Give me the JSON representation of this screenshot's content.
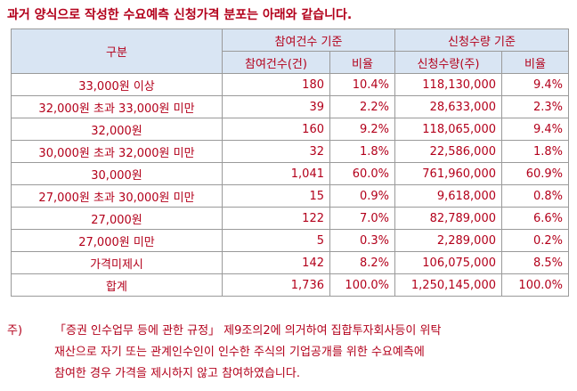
{
  "heading": "과거 양식으로 작성한 수요예측 신청가격 분포는 아래와 같습니다.",
  "table": {
    "header_category": "구분",
    "header_group_count": "참여건수 기준",
    "header_group_qty": "신청수량 기준",
    "sub_count": "참여건수(건)",
    "sub_count_ratio": "비율",
    "sub_qty": "신청수량(주)",
    "sub_qty_ratio": "비율",
    "rows": [
      {
        "label": "33,000원 이상",
        "count": "180",
        "count_ratio": "10.4%",
        "qty": "118,130,000",
        "qty_ratio": "9.4%"
      },
      {
        "label": "32,000원 초과 33,000원 미만",
        "count": "39",
        "count_ratio": "2.2%",
        "qty": "28,633,000",
        "qty_ratio": "2.3%"
      },
      {
        "label": "32,000원",
        "count": "160",
        "count_ratio": "9.2%",
        "qty": "118,065,000",
        "qty_ratio": "9.4%"
      },
      {
        "label": "30,000원 초과 32,000원 미만",
        "count": "32",
        "count_ratio": "1.8%",
        "qty": "22,586,000",
        "qty_ratio": "1.8%"
      },
      {
        "label": "30,000원",
        "count": "1,041",
        "count_ratio": "60.0%",
        "qty": "761,960,000",
        "qty_ratio": "60.9%"
      },
      {
        "label": "27,000원 초과 30,000원 미만",
        "count": "15",
        "count_ratio": "0.9%",
        "qty": "9,618,000",
        "qty_ratio": "0.8%"
      },
      {
        "label": "27,000원",
        "count": "122",
        "count_ratio": "7.0%",
        "qty": "82,789,000",
        "qty_ratio": "6.6%"
      },
      {
        "label": "27,000원 미만",
        "count": "5",
        "count_ratio": "0.3%",
        "qty": "2,289,000",
        "qty_ratio": "0.2%"
      },
      {
        "label": "가격미제시",
        "count": "142",
        "count_ratio": "8.2%",
        "qty": "106,075,000",
        "qty_ratio": "8.5%"
      },
      {
        "label": "합계",
        "count": "1,736",
        "count_ratio": "100.0%",
        "qty": "1,250,145,000",
        "qty_ratio": "100.0%"
      }
    ]
  },
  "note": {
    "mark": "주)",
    "lines": [
      "「증권 인수업무 등에 관한 규정」 제9조의2에 의거하여 집합투자회사등이 위탁",
      "재산으로 자기 또는 관계인수인이 인수한 주식의 기업공개를 위한 수요예측에",
      "참여한 경우 가격을 제시하지 않고 참여하였습니다."
    ]
  },
  "colors": {
    "text": "#b3001b",
    "header_bg": "#d9e5f3",
    "border": "#9a9a9a"
  }
}
